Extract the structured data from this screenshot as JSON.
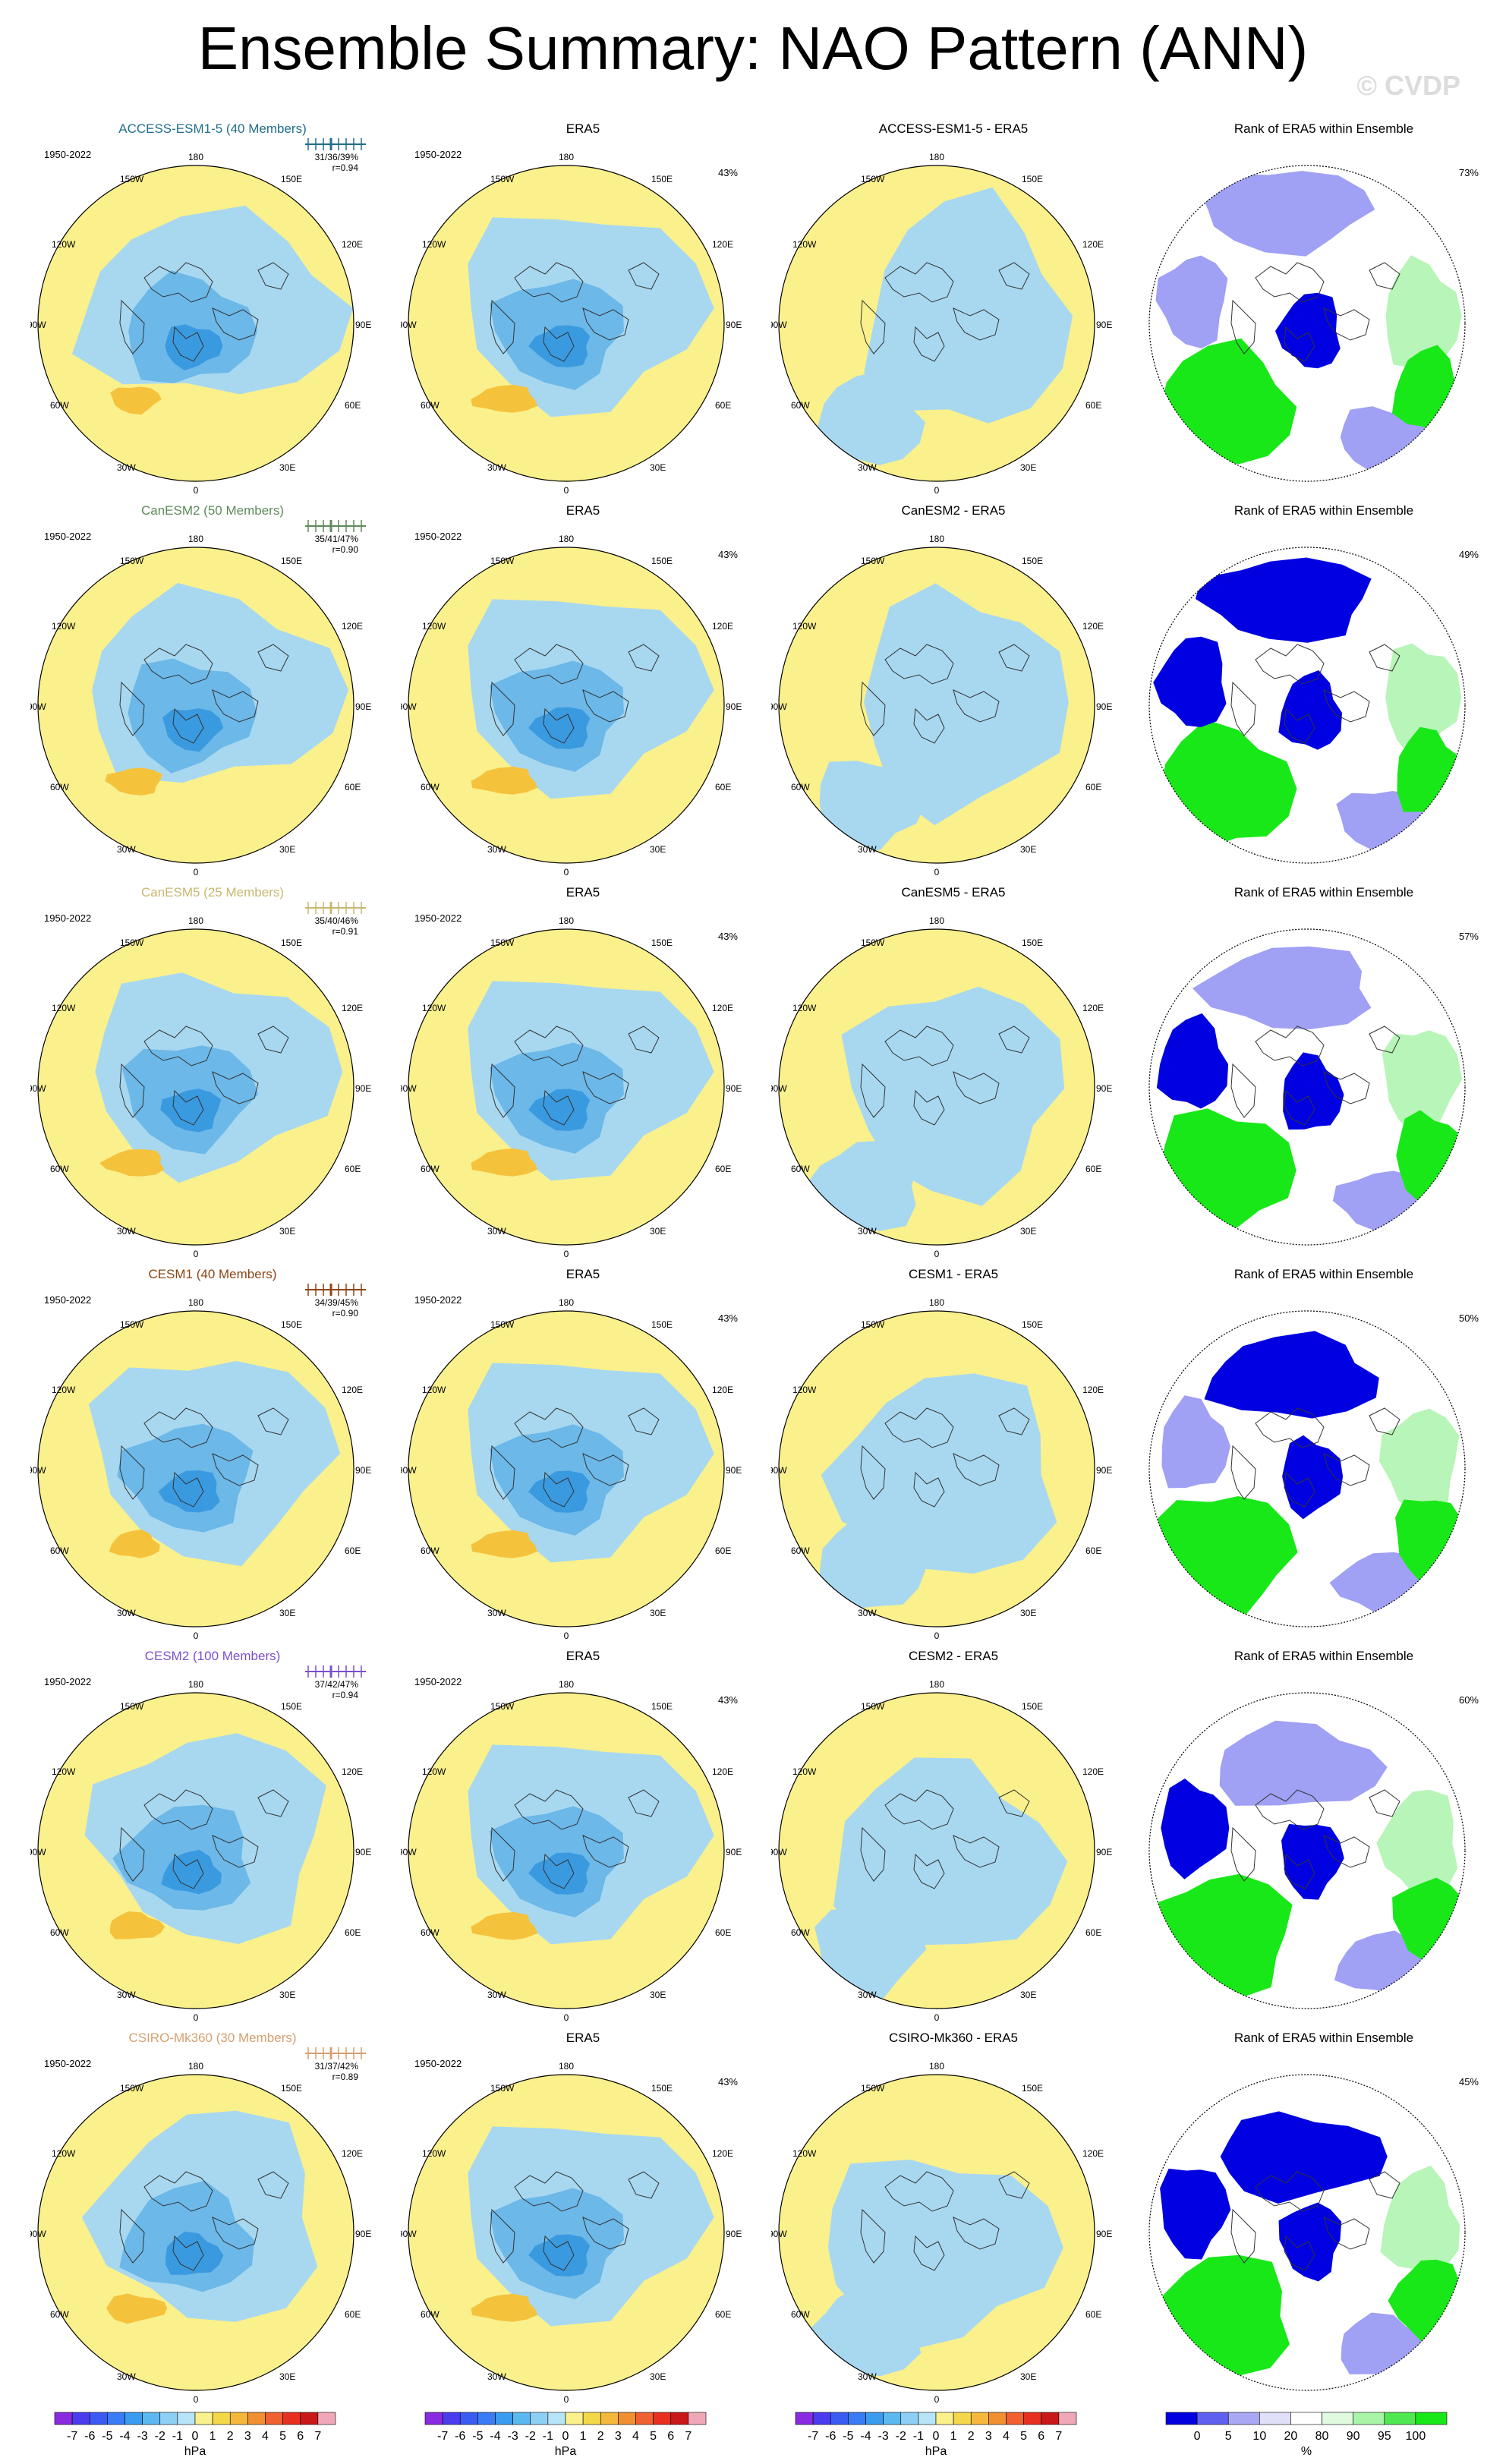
{
  "title": "Ensemble Summary: NAO Pattern (ANN)",
  "watermark": "© CVDP",
  "colors": {
    "positive": "#faf08c",
    "negative": "#a8d8f0",
    "neg_mid": "#6cb8e8",
    "neg_strong": "#3a9ae0",
    "pos_mid": "#f5c23c",
    "rank_low": "#0000e0",
    "rank_mid_low": "#a0a0f5",
    "rank_high": "#18e818",
    "rank_mid_high": "#b8f5b8"
  },
  "map_labels": {
    "lon_top": "180",
    "lon_150w": "150W",
    "lon_150e": "150E",
    "lon_120w": "120W",
    "lon_120e": "120E",
    "lon_90w": "90W",
    "lon_90e": "90E",
    "lon_60w": "60W",
    "lon_60e": "60E",
    "lon_30w": "30W",
    "lon_30e": "30E",
    "lon_bottom": "0"
  },
  "rows": [
    {
      "model_title": "ACCESS-ESM1-5 (40 Members)",
      "model_color": "#1f6e8c",
      "years": "1950-2022",
      "stats": "31/36/39%",
      "corr": "r=0.94",
      "era_title": "ERA5",
      "era_years": "1950-2022",
      "era_pct": "43%",
      "diff_title": "ACCESS-ESM1-5 - ERA5",
      "rank_title": "Rank of ERA5 within Ensemble",
      "rank_pct": "73%",
      "diff_variant": 0,
      "rank_variant": 0
    },
    {
      "model_title": "CanESM2 (50 Members)",
      "model_color": "#5e8a5a",
      "years": "1950-2022",
      "stats": "35/41/47%",
      "corr": "r=0.90",
      "era_title": "ERA5",
      "era_years": "1950-2022",
      "era_pct": "43%",
      "diff_title": "CanESM2 - ERA5",
      "rank_title": "Rank of ERA5 within Ensemble",
      "rank_pct": "49%",
      "diff_variant": 1,
      "rank_variant": 1
    },
    {
      "model_title": "CanESM5 (25 Members)",
      "model_color": "#c8b870",
      "years": "1950-2022",
      "stats": "35/40/46%",
      "corr": "r=0.91",
      "era_title": "ERA5",
      "era_years": "1950-2022",
      "era_pct": "43%",
      "diff_title": "CanESM5 - ERA5",
      "rank_title": "Rank of ERA5 within Ensemble",
      "rank_pct": "57%",
      "diff_variant": 2,
      "rank_variant": 2
    },
    {
      "model_title": "CESM1 (40 Members)",
      "model_color": "#8b4513",
      "years": "1950-2022",
      "stats": "34/39/45%",
      "corr": "r=0.90",
      "era_title": "ERA5",
      "era_years": "1950-2022",
      "era_pct": "43%",
      "diff_title": "CESM1 - ERA5",
      "rank_title": "Rank of ERA5 within Ensemble",
      "rank_pct": "50%",
      "diff_variant": 3,
      "rank_variant": 3
    },
    {
      "model_title": "CESM2 (100 Members)",
      "model_color": "#7a4fd0",
      "years": "1950-2022",
      "stats": "37/42/47%",
      "corr": "r=0.94",
      "era_title": "ERA5",
      "era_years": "1950-2022",
      "era_pct": "43%",
      "diff_title": "CESM2 - ERA5",
      "rank_title": "Rank of ERA5 within Ensemble",
      "rank_pct": "60%",
      "diff_variant": 4,
      "rank_variant": 4
    },
    {
      "model_title": "CSIRO-Mk360 (30 Members)",
      "model_color": "#d4a070",
      "years": "1950-2022",
      "stats": "31/37/42%",
      "corr": "r=0.89",
      "era_title": "ERA5",
      "era_years": "1950-2022",
      "era_pct": "43%",
      "diff_title": "CSIRO-Mk360 - ERA5",
      "rank_title": "Rank of ERA5 within Ensemble",
      "rank_pct": "45%",
      "diff_variant": 5,
      "rank_variant": 5
    }
  ],
  "colorbar_hpa": {
    "labels": [
      "-7",
      "-6",
      "-5",
      "-4",
      "-3",
      "-2",
      "-1",
      "0",
      "1",
      "2",
      "3",
      "4",
      "5",
      "6",
      "7"
    ],
    "units": "hPa",
    "colors": [
      "#8a2be2",
      "#4b3cf0",
      "#3a5cf5",
      "#3a7cf5",
      "#3a9cf0",
      "#5cb8f0",
      "#8ed0f5",
      "#b8e4f8",
      "#faf08c",
      "#f5d84a",
      "#f5b83c",
      "#f09030",
      "#f06030",
      "#e83020",
      "#c81818",
      "#f0a8b8"
    ]
  },
  "colorbar_rank": {
    "labels": [
      "0",
      "5",
      "10",
      "20",
      "80",
      "90",
      "95",
      "100"
    ],
    "units": "%",
    "colors": [
      "#0000e0",
      "#6060f0",
      "#a8a8f5",
      "#e0e0fa",
      "#ffffff",
      "#e0fae0",
      "#a8f5a8",
      "#50e850",
      "#18e818"
    ]
  },
  "chart_data": {
    "type": "heatmap",
    "title": "Ensemble Summary: NAO Pattern (ANN)",
    "period": "1950-2022",
    "units": "hPa",
    "rows": [
      {
        "model": "ACCESS-ESM1-5",
        "members": 40,
        "pct_explained": [
          31,
          36,
          39
        ],
        "pattern_corr": 0.94,
        "era5_pct": 43,
        "rank_pct": 73
      },
      {
        "model": "CanESM2",
        "members": 50,
        "pct_explained": [
          35,
          41,
          47
        ],
        "pattern_corr": 0.9,
        "era5_pct": 43,
        "rank_pct": 49
      },
      {
        "model": "CanESM5",
        "members": 25,
        "pct_explained": [
          35,
          40,
          46
        ],
        "pattern_corr": 0.91,
        "era5_pct": 43,
        "rank_pct": 57
      },
      {
        "model": "CESM1",
        "members": 40,
        "pct_explained": [
          34,
          39,
          45
        ],
        "pattern_corr": 0.9,
        "era5_pct": 43,
        "rank_pct": 50
      },
      {
        "model": "CESM2",
        "members": 100,
        "pct_explained": [
          37,
          42,
          47
        ],
        "pattern_corr": 0.94,
        "era5_pct": 43,
        "rank_pct": 60
      },
      {
        "model": "CSIRO-Mk360",
        "members": 30,
        "pct_explained": [
          31,
          37,
          42
        ],
        "pattern_corr": 0.89,
        "era5_pct": 43,
        "rank_pct": 45
      }
    ],
    "contour_levels_hpa": [
      -7,
      -6,
      -5,
      -4,
      -3,
      -2,
      -1,
      0,
      1,
      2,
      3,
      4,
      5,
      6,
      7
    ],
    "rank_levels_pct": [
      0,
      5,
      10,
      20,
      80,
      90,
      95,
      100
    ]
  }
}
